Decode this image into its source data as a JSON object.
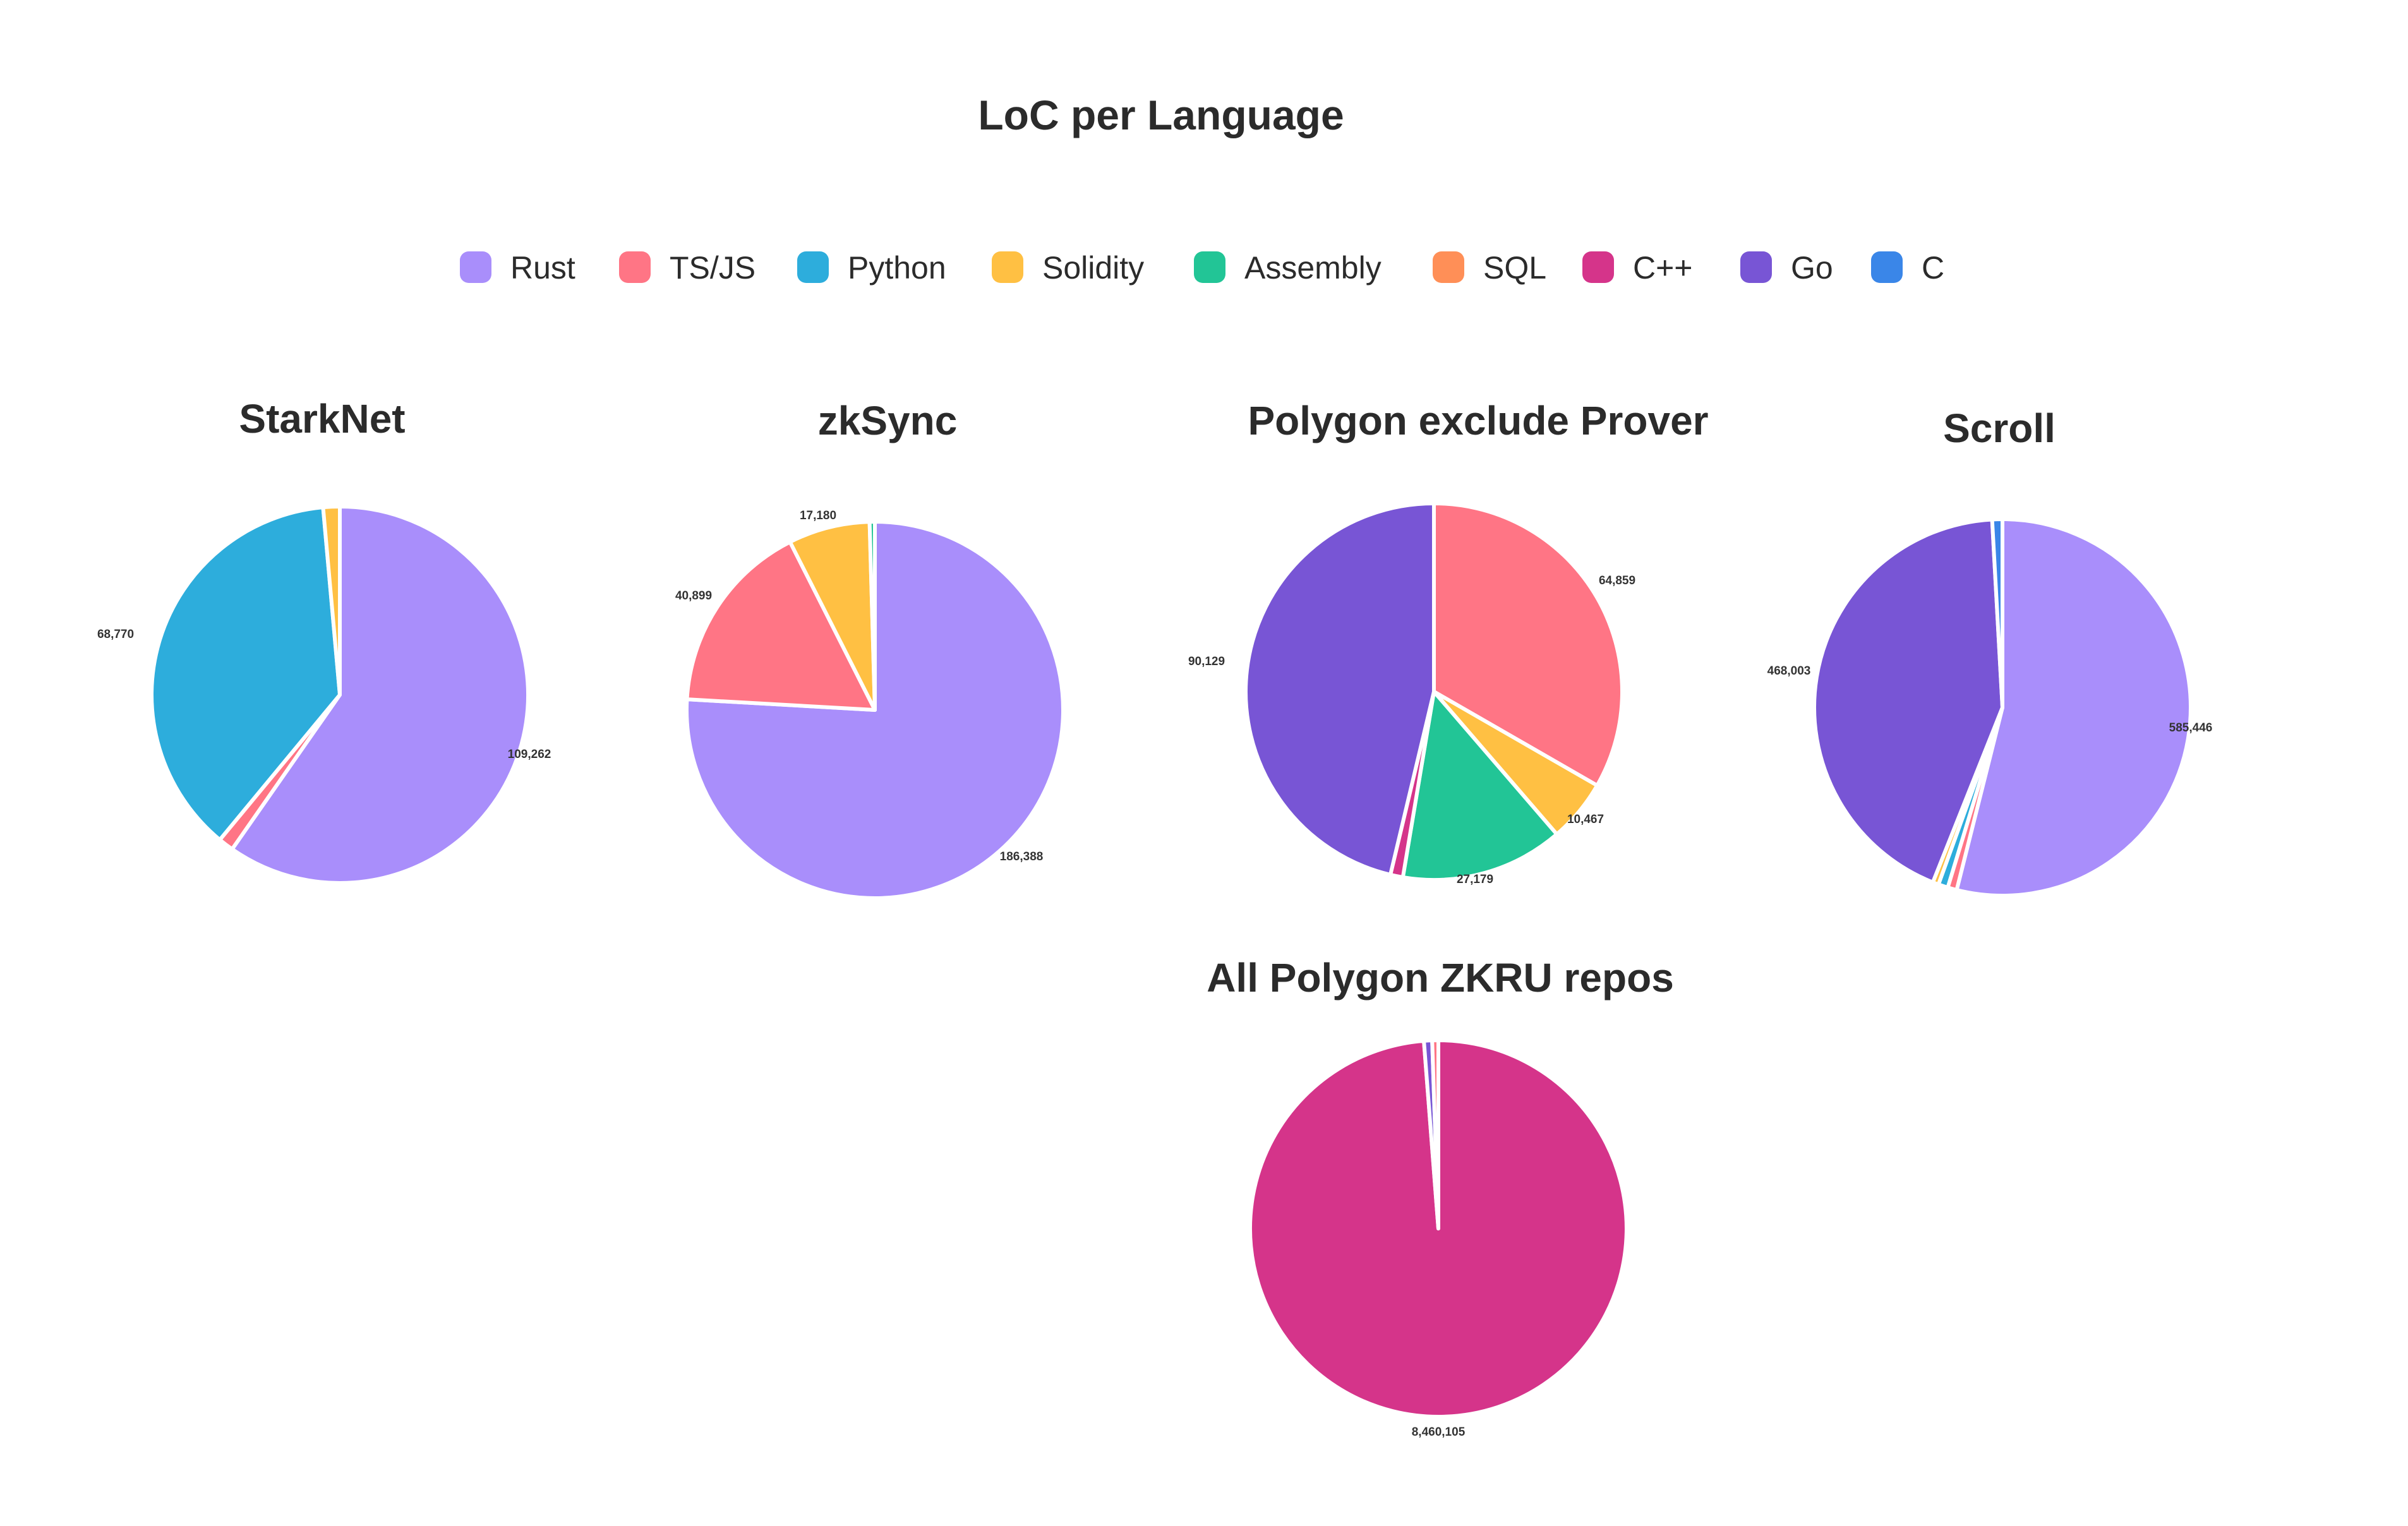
{
  "title": "LoC per Language",
  "legend": [
    {
      "label": "Rust",
      "color": "#A98EFB"
    },
    {
      "label": "TS/JS",
      "color": "#FF7585"
    },
    {
      "label": "Python",
      "color": "#2DADDC"
    },
    {
      "label": "Solidity",
      "color": "#FFC043"
    },
    {
      "label": "Assembly",
      "color": "#22C596"
    },
    {
      "label": "SQL",
      "color": "#FF8F57"
    },
    {
      "label": "C++",
      "color": "#D5348A"
    },
    {
      "label": "Go",
      "color": "#7855D5"
    },
    {
      "label": "C",
      "color": "#3A86E8"
    }
  ],
  "chart_data": [
    {
      "type": "pie",
      "title": "StarkNet",
      "slices": [
        {
          "label": "Rust",
          "value": 109262,
          "data_label": "109,262"
        },
        {
          "label": "TS/JS",
          "value": 2400
        },
        {
          "label": "Python",
          "value": 68770,
          "data_label": "68,770"
        },
        {
          "label": "Solidity",
          "value": 2600
        }
      ]
    },
    {
      "type": "pie",
      "title": "zkSync",
      "slices": [
        {
          "label": "Rust",
          "value": 186388,
          "data_label": "186,388"
        },
        {
          "label": "TS/JS",
          "value": 40899,
          "data_label": "40,899"
        },
        {
          "label": "Solidity",
          "value": 17180,
          "data_label": "17,180"
        },
        {
          "label": "Assembly",
          "value": 1100
        }
      ]
    },
    {
      "type": "pie",
      "title": "Polygon exclude Prover",
      "slices": [
        {
          "label": "TS/JS",
          "value": 64859,
          "data_label": "64,859"
        },
        {
          "label": "Solidity",
          "value": 10467,
          "data_label": "10,467"
        },
        {
          "label": "Assembly",
          "value": 27179,
          "data_label": "27,179"
        },
        {
          "label": "C++",
          "value": 2100
        },
        {
          "label": "Go",
          "value": 90129,
          "data_label": "90,129"
        }
      ]
    },
    {
      "type": "pie",
      "title": "Scroll",
      "slices": [
        {
          "label": "Rust",
          "value": 585446,
          "data_label": "585,446"
        },
        {
          "label": "TS/JS",
          "value": 8500
        },
        {
          "label": "Python",
          "value": 9000
        },
        {
          "label": "Solidity",
          "value": 5500
        },
        {
          "label": "Go",
          "value": 468003,
          "data_label": "468,003"
        },
        {
          "label": "C",
          "value": 9500
        }
      ]
    },
    {
      "type": "pie",
      "title": "All Polygon ZKRU repos",
      "slices": [
        {
          "label": "C++",
          "value": 8460105,
          "data_label": "8,460,105"
        },
        {
          "label": "Go",
          "value": 60000
        },
        {
          "label": "TS/JS",
          "value": 45000
        }
      ]
    }
  ]
}
